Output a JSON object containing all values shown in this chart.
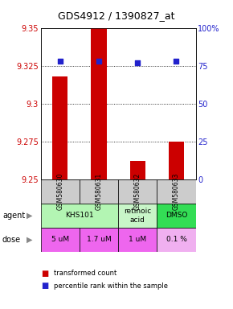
{
  "title": "GDS4912 / 1390827_at",
  "samples": [
    "GSM580630",
    "GSM580631",
    "GSM580632",
    "GSM580633"
  ],
  "bar_values": [
    9.318,
    9.35,
    9.262,
    9.275
  ],
  "bar_bottom": 9.25,
  "dot_values": [
    78,
    78,
    77,
    78
  ],
  "ylim_left": [
    9.25,
    9.35
  ],
  "ylim_right": [
    0,
    100
  ],
  "yticks_left": [
    9.25,
    9.275,
    9.3,
    9.325,
    9.35
  ],
  "yticks_right": [
    0,
    25,
    50,
    75,
    100
  ],
  "ytick_labels_right": [
    "0",
    "25",
    "50",
    "75",
    "100%"
  ],
  "bar_color": "#cc0000",
  "dot_color": "#2222cc",
  "sample_bg_color": "#cccccc",
  "agent_groups": [
    {
      "c0": 0,
      "c1": 2,
      "label": "KHS101",
      "color": "#b3f5b3"
    },
    {
      "c0": 2,
      "c1": 3,
      "label": "retinoic\nacid",
      "color": "#c8f5c8"
    },
    {
      "c0": 3,
      "c1": 4,
      "label": "DMSO",
      "color": "#33dd55"
    }
  ],
  "dose_labels": [
    "5 uM",
    "1.7 uM",
    "1 uM",
    "0.1 %"
  ],
  "dose_colors": [
    "#ee66ee",
    "#ee66ee",
    "#ee66ee",
    "#f0b0f0"
  ],
  "legend_bar_label": "transformed count",
  "legend_dot_label": "percentile rank within the sample",
  "left_label_color": "#cc0000",
  "right_label_color": "#2222cc"
}
